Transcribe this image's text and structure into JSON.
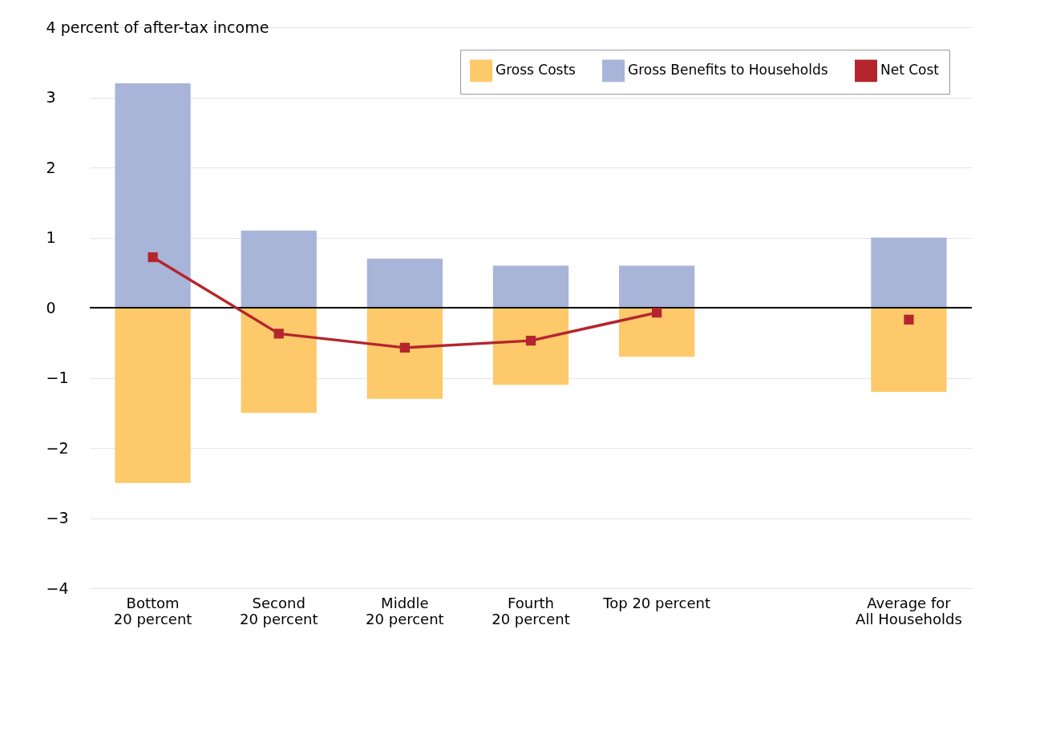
{
  "chart_data": {
    "type": "bar",
    "stacked": true,
    "categories": [
      "Bottom 20 percent",
      "Second 20 percent",
      "Middle 20 percent",
      "Fourth 20 percent",
      "Top 20 percent",
      null,
      "Average for All Households"
    ],
    "series": [
      {
        "name": "Gross Costs",
        "color": "#fdc96b",
        "values": [
          -2.5,
          -1.5,
          -1.3,
          -1.1,
          -0.7,
          null,
          -1.2
        ]
      },
      {
        "name": "Gross Benefits to Households",
        "color": "#a9b4d9",
        "values": [
          3.2,
          1.1,
          0.7,
          0.6,
          0.6,
          null,
          1.0
        ]
      },
      {
        "name": "Net Cost",
        "type": "line",
        "color": "#b5252d",
        "marker": "square",
        "values": [
          0.72,
          -0.37,
          -0.57,
          -0.47,
          -0.07,
          null,
          -0.17
        ]
      }
    ],
    "ylim": [
      -4,
      4
    ],
    "yticks": [
      -4,
      -3,
      -2,
      -1,
      0,
      1,
      2,
      3,
      {
        "value": 4,
        "label": "4 percent of after-tax income"
      }
    ],
    "grid": "y",
    "legend": "top right"
  }
}
